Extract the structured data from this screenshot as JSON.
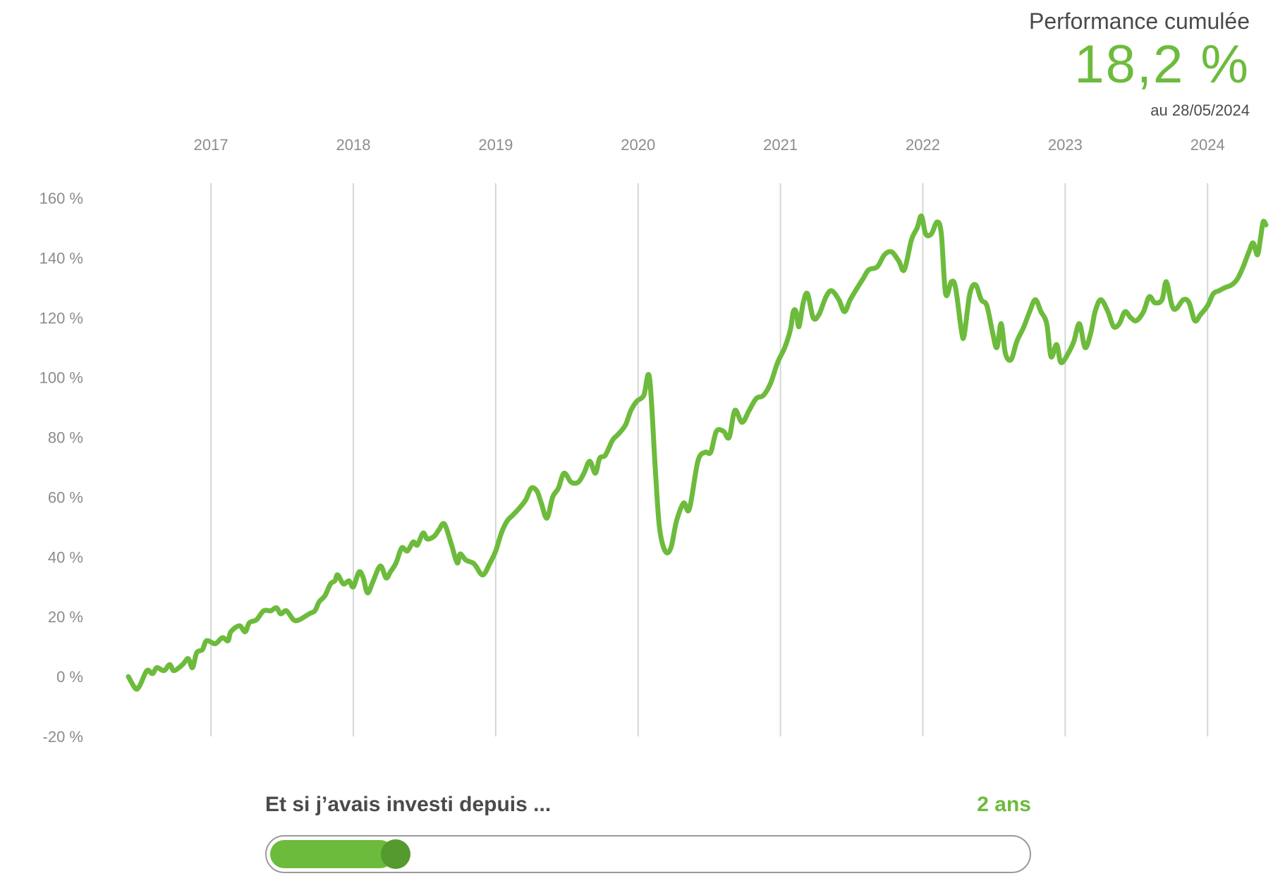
{
  "header": {
    "label": "Performance cumulée",
    "value": "18,2 %",
    "date": "au 28/05/2024"
  },
  "slider": {
    "question": "Et si j’avais investi depuis ...",
    "value_label": "2 ans",
    "fraction": 0.155
  },
  "colors": {
    "line": "#6dbb3c",
    "accent": "#6dbb3c",
    "thumb": "#549a2e",
    "grid": "#d6d6d6",
    "text": "#4a4a4a",
    "axis_text": "#8c8c8c"
  },
  "chart_data": {
    "type": "line",
    "title": "",
    "xlabel": "",
    "ylabel": "",
    "xlim": [
      2016.41,
      2024.41
    ],
    "ylim": [
      -20,
      160
    ],
    "x_ticks": [
      {
        "value": 2017,
        "label": "2017"
      },
      {
        "value": 2018,
        "label": "2018"
      },
      {
        "value": 2019,
        "label": "2019"
      },
      {
        "value": 2020,
        "label": "2020"
      },
      {
        "value": 2021,
        "label": "2021"
      },
      {
        "value": 2022,
        "label": "2022"
      },
      {
        "value": 2023,
        "label": "2023"
      },
      {
        "value": 2024,
        "label": "2024"
      }
    ],
    "y_ticks": [
      {
        "value": 160,
        "label": "160 %"
      },
      {
        "value": 140,
        "label": "140 %"
      },
      {
        "value": 120,
        "label": "120 %"
      },
      {
        "value": 100,
        "label": "100 %"
      },
      {
        "value": 80,
        "label": "80 %"
      },
      {
        "value": 60,
        "label": "60 %"
      },
      {
        "value": 40,
        "label": "40 %"
      },
      {
        "value": 20,
        "label": "20 %"
      },
      {
        "value": 0,
        "label": "0 %"
      },
      {
        "value": -20,
        "label": "-20 %"
      }
    ],
    "grid": "vertical-at-year-ticks",
    "series": [
      {
        "points": [
          [
            2016.42,
            0
          ],
          [
            2016.47,
            -4
          ],
          [
            2016.5,
            -3
          ],
          [
            2016.55,
            2
          ],
          [
            2016.59,
            1
          ],
          [
            2016.62,
            3
          ],
          [
            2016.67,
            2
          ],
          [
            2016.71,
            4
          ],
          [
            2016.74,
            2
          ],
          [
            2016.8,
            4
          ],
          [
            2016.84,
            6
          ],
          [
            2016.87,
            3
          ],
          [
            2016.9,
            8
          ],
          [
            2016.94,
            9
          ],
          [
            2016.97,
            12
          ],
          [
            2017.03,
            11
          ],
          [
            2017.08,
            13
          ],
          [
            2017.12,
            12
          ],
          [
            2017.14,
            15
          ],
          [
            2017.2,
            17
          ],
          [
            2017.24,
            15
          ],
          [
            2017.27,
            18
          ],
          [
            2017.32,
            19
          ],
          [
            2017.37,
            22
          ],
          [
            2017.42,
            22
          ],
          [
            2017.46,
            23
          ],
          [
            2017.49,
            21
          ],
          [
            2017.53,
            22
          ],
          [
            2017.58,
            19
          ],
          [
            2017.62,
            19
          ],
          [
            2017.69,
            21
          ],
          [
            2017.73,
            22
          ],
          [
            2017.76,
            25
          ],
          [
            2017.8,
            27
          ],
          [
            2017.84,
            31
          ],
          [
            2017.87,
            32
          ],
          [
            2017.89,
            34
          ],
          [
            2017.93,
            31
          ],
          [
            2017.97,
            32
          ],
          [
            2018.0,
            30
          ],
          [
            2018.04,
            35
          ],
          [
            2018.07,
            33
          ],
          [
            2018.1,
            28
          ],
          [
            2018.14,
            32
          ],
          [
            2018.19,
            37
          ],
          [
            2018.23,
            33
          ],
          [
            2018.26,
            35
          ],
          [
            2018.3,
            38
          ],
          [
            2018.34,
            43
          ],
          [
            2018.38,
            42
          ],
          [
            2018.42,
            45
          ],
          [
            2018.45,
            44
          ],
          [
            2018.49,
            48
          ],
          [
            2018.52,
            46
          ],
          [
            2018.57,
            47
          ],
          [
            2018.6,
            49
          ],
          [
            2018.64,
            51
          ],
          [
            2018.69,
            44
          ],
          [
            2018.73,
            38
          ],
          [
            2018.75,
            41
          ],
          [
            2018.79,
            39
          ],
          [
            2018.84,
            38
          ],
          [
            2018.86,
            37
          ],
          [
            2018.91,
            34
          ],
          [
            2018.96,
            38
          ],
          [
            2019.0,
            42
          ],
          [
            2019.04,
            48
          ],
          [
            2019.08,
            52
          ],
          [
            2019.12,
            54
          ],
          [
            2019.16,
            56
          ],
          [
            2019.21,
            59
          ],
          [
            2019.25,
            63
          ],
          [
            2019.29,
            62
          ],
          [
            2019.32,
            58
          ],
          [
            2019.36,
            53
          ],
          [
            2019.4,
            60
          ],
          [
            2019.44,
            63
          ],
          [
            2019.48,
            68
          ],
          [
            2019.53,
            65
          ],
          [
            2019.58,
            65
          ],
          [
            2019.62,
            68
          ],
          [
            2019.66,
            72
          ],
          [
            2019.7,
            68
          ],
          [
            2019.73,
            73
          ],
          [
            2019.77,
            74
          ],
          [
            2019.82,
            79
          ],
          [
            2019.86,
            81
          ],
          [
            2019.91,
            84
          ],
          [
            2019.95,
            89
          ],
          [
            2019.99,
            92
          ],
          [
            2020.04,
            94
          ],
          [
            2020.08,
            100
          ],
          [
            2020.12,
            70
          ],
          [
            2020.15,
            50
          ],
          [
            2020.19,
            42
          ],
          [
            2020.23,
            43
          ],
          [
            2020.27,
            52
          ],
          [
            2020.32,
            58
          ],
          [
            2020.36,
            56
          ],
          [
            2020.42,
            72
          ],
          [
            2020.47,
            75
          ],
          [
            2020.51,
            75
          ],
          [
            2020.55,
            82
          ],
          [
            2020.6,
            82
          ],
          [
            2020.64,
            80
          ],
          [
            2020.68,
            89
          ],
          [
            2020.73,
            85
          ],
          [
            2020.78,
            89
          ],
          [
            2020.83,
            93
          ],
          [
            2020.88,
            94
          ],
          [
            2020.93,
            98
          ],
          [
            2020.98,
            105
          ],
          [
            2021.03,
            110
          ],
          [
            2021.07,
            116
          ],
          [
            2021.09,
            122
          ],
          [
            2021.11,
            122
          ],
          [
            2021.13,
            117
          ],
          [
            2021.16,
            125
          ],
          [
            2021.19,
            128
          ],
          [
            2021.23,
            120
          ],
          [
            2021.27,
            121
          ],
          [
            2021.32,
            127
          ],
          [
            2021.36,
            129
          ],
          [
            2021.41,
            126
          ],
          [
            2021.45,
            122
          ],
          [
            2021.49,
            126
          ],
          [
            2021.54,
            130
          ],
          [
            2021.58,
            133
          ],
          [
            2021.62,
            136
          ],
          [
            2021.68,
            137
          ],
          [
            2021.73,
            141
          ],
          [
            2021.78,
            142
          ],
          [
            2021.83,
            139
          ],
          [
            2021.87,
            136
          ],
          [
            2021.92,
            146
          ],
          [
            2021.96,
            150
          ],
          [
            2021.99,
            154
          ],
          [
            2022.02,
            148
          ],
          [
            2022.06,
            148
          ],
          [
            2022.1,
            152
          ],
          [
            2022.13,
            148
          ],
          [
            2022.16,
            128
          ],
          [
            2022.2,
            132
          ],
          [
            2022.23,
            130
          ],
          [
            2022.27,
            116
          ],
          [
            2022.29,
            114
          ],
          [
            2022.33,
            128
          ],
          [
            2022.37,
            131
          ],
          [
            2022.41,
            126
          ],
          [
            2022.45,
            124
          ],
          [
            2022.49,
            115
          ],
          [
            2022.52,
            110
          ],
          [
            2022.55,
            118
          ],
          [
            2022.58,
            108
          ],
          [
            2022.62,
            106
          ],
          [
            2022.66,
            112
          ],
          [
            2022.71,
            117
          ],
          [
            2022.75,
            122
          ],
          [
            2022.79,
            126
          ],
          [
            2022.83,
            122
          ],
          [
            2022.87,
            118
          ],
          [
            2022.9,
            107
          ],
          [
            2022.94,
            111
          ],
          [
            2022.97,
            105
          ],
          [
            2023.02,
            108
          ],
          [
            2023.06,
            112
          ],
          [
            2023.1,
            118
          ],
          [
            2023.14,
            110
          ],
          [
            2023.18,
            115
          ],
          [
            2023.21,
            122
          ],
          [
            2023.25,
            126
          ],
          [
            2023.3,
            122
          ],
          [
            2023.34,
            117
          ],
          [
            2023.38,
            118
          ],
          [
            2023.42,
            122
          ],
          [
            2023.46,
            120
          ],
          [
            2023.5,
            119
          ],
          [
            2023.55,
            122
          ],
          [
            2023.59,
            127
          ],
          [
            2023.63,
            125
          ],
          [
            2023.68,
            126
          ],
          [
            2023.71,
            132
          ],
          [
            2023.75,
            124
          ],
          [
            2023.78,
            123
          ],
          [
            2023.83,
            126
          ],
          [
            2023.87,
            125
          ],
          [
            2023.91,
            119
          ],
          [
            2023.95,
            121
          ],
          [
            2024.0,
            124
          ],
          [
            2024.04,
            128
          ],
          [
            2024.08,
            129
          ],
          [
            2024.12,
            130
          ],
          [
            2024.17,
            131
          ],
          [
            2024.21,
            133
          ],
          [
            2024.25,
            137
          ],
          [
            2024.29,
            142
          ],
          [
            2024.32,
            145
          ],
          [
            2024.35,
            141
          ],
          [
            2024.37,
            146
          ],
          [
            2024.39,
            152
          ],
          [
            2024.41,
            151
          ]
        ]
      }
    ]
  }
}
